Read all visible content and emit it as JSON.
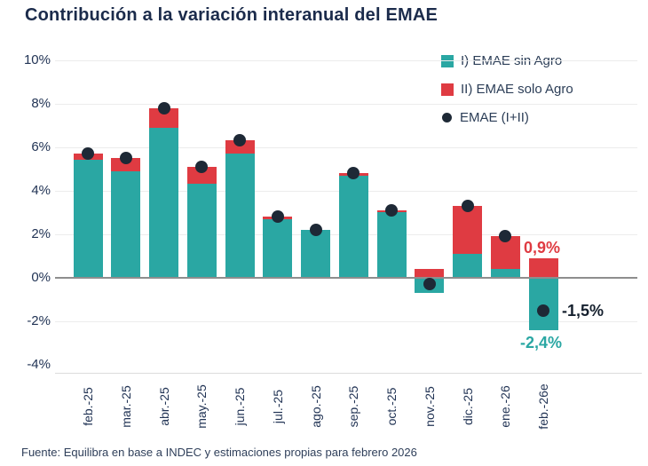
{
  "title": "Contribución a la variación interanual del EMAE",
  "source": "Fuente: Equilibra en base a INDEC y estimaciones propias para febrero 2026",
  "colors": {
    "sin_agro": "#2AA7A3",
    "solo_agro": "#DF3B42",
    "emae_dot": "#1E2936",
    "title_text": "#1B2B4B",
    "axis_text": "#223455",
    "gridline": "#ECECEC",
    "zero_line": "#8E8E8E"
  },
  "legend": [
    {
      "label": "I) EMAE sin Agro",
      "marker": "square",
      "color": "#2AA7A3"
    },
    {
      "label": "II) EMAE solo Agro",
      "marker": "square",
      "color": "#DF3B42"
    },
    {
      "label": "EMAE (I+II)",
      "marker": "dot",
      "color": "#1E2936"
    }
  ],
  "chart_data": {
    "type": "bar",
    "stacked": true,
    "title": "Contribución a la variación interanual del EMAE",
    "xlabel": "",
    "ylabel": "",
    "ylim": [
      -4,
      10
    ],
    "grid": true,
    "legend_position": "top-right",
    "y_ticks": [
      "10%",
      "8%",
      "6%",
      "4%",
      "2%",
      "0%",
      "-2%",
      "-4%"
    ],
    "categories": [
      "feb.-25",
      "mar.-25",
      "abr.-25",
      "may.-25",
      "jun.-25",
      "jul.-25",
      "ago.-25",
      "sep.-25",
      "oct.-25",
      "nov.-25",
      "dic.-25",
      "ene.-26",
      "feb.-26e"
    ],
    "series": [
      {
        "name": "I) EMAE sin Agro",
        "color": "#2AA7A3",
        "values": [
          5.4,
          4.9,
          6.9,
          4.3,
          5.7,
          2.7,
          2.2,
          4.7,
          3.0,
          -0.7,
          1.1,
          0.4,
          -2.4
        ]
      },
      {
        "name": "II) EMAE solo Agro",
        "color": "#DF3B42",
        "values": [
          0.3,
          0.6,
          0.9,
          0.8,
          0.6,
          0.1,
          0.0,
          0.1,
          0.1,
          0.4,
          2.2,
          1.5,
          0.9
        ]
      }
    ],
    "dot_series": {
      "name": "EMAE (I+II)",
      "color": "#1E2936",
      "values": [
        5.7,
        5.5,
        7.8,
        5.1,
        6.3,
        2.8,
        2.2,
        4.8,
        3.1,
        -0.3,
        3.3,
        1.9,
        -1.5
      ]
    },
    "annotations": [
      {
        "text": "0,9%",
        "refers_to": "feb.-26e solo Agro",
        "color": "#DF3B42"
      },
      {
        "text": "-1,5%",
        "refers_to": "feb.-26e EMAE total",
        "color": "#15202E"
      },
      {
        "text": "-2,4%",
        "refers_to": "feb.-26e sin Agro",
        "color": "#2AA7A3"
      }
    ]
  }
}
